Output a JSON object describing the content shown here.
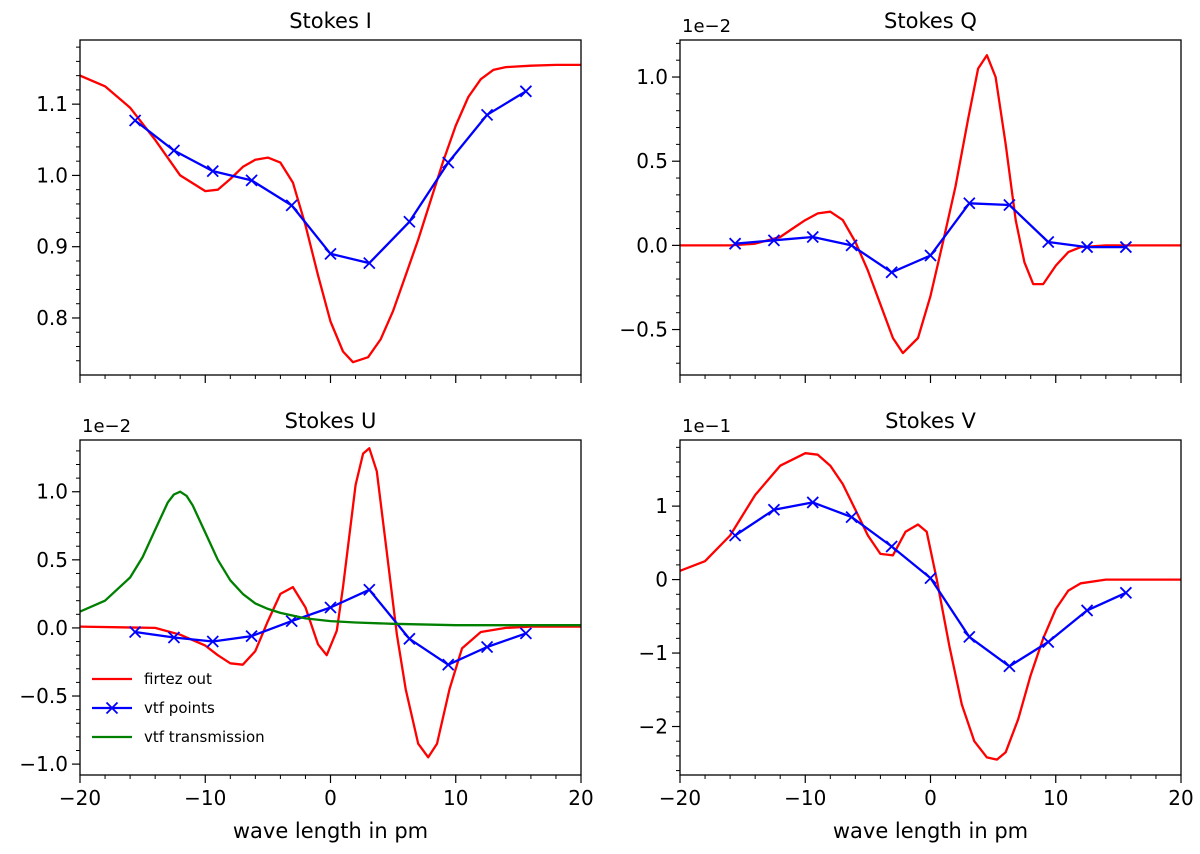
{
  "figure": {
    "xlabel": "wave length in pm",
    "legend": {
      "entries": [
        {
          "label": "firtez out",
          "color": "#ff0000",
          "marker": "none"
        },
        {
          "label": "vtf points",
          "color": "#0000ff",
          "marker": "x"
        },
        {
          "label": "vtf transmission",
          "color": "#008000",
          "marker": "none"
        }
      ],
      "placement": "lower-left",
      "panel": 2
    }
  },
  "chart_data": [
    {
      "type": "line",
      "title": "Stokes I",
      "offset_text": "",
      "xlabel": "",
      "xlim": [
        -20,
        20
      ],
      "ylim": [
        0.72,
        1.19
      ],
      "xticks": [],
      "yticks": [
        {
          "v": 0.8,
          "label": "0.8"
        },
        {
          "v": 0.9,
          "label": "0.9"
        },
        {
          "v": 1.0,
          "label": "1.0"
        },
        {
          "v": 1.1,
          "label": "1.1"
        }
      ],
      "series": [
        {
          "name": "firtez out",
          "color": "#ff0000",
          "marker": "none",
          "x": [
            -20,
            -18,
            -16,
            -14,
            -12,
            -10,
            -9,
            -8,
            -7,
            -6,
            -5,
            -4,
            -3,
            -2,
            -1,
            0,
            1,
            1.8,
            3,
            4,
            5,
            6,
            7,
            8,
            9,
            10,
            11,
            12,
            13,
            14,
            16,
            18,
            20
          ],
          "y": [
            1.14,
            1.125,
            1.095,
            1.05,
            1.0,
            0.978,
            0.98,
            0.995,
            1.012,
            1.022,
            1.025,
            1.018,
            0.99,
            0.93,
            0.86,
            0.795,
            0.753,
            0.738,
            0.745,
            0.77,
            0.81,
            0.86,
            0.91,
            0.965,
            1.02,
            1.07,
            1.11,
            1.135,
            1.148,
            1.152,
            1.154,
            1.155,
            1.155
          ]
        },
        {
          "name": "vtf points",
          "color": "#0000ff",
          "marker": "x",
          "x": [
            -15.6,
            -12.5,
            -9.4,
            -6.3,
            -3.1,
            0,
            3.1,
            6.3,
            9.4,
            12.5,
            15.6
          ],
          "y": [
            1.077,
            1.035,
            1.006,
            0.993,
            0.958,
            0.89,
            0.877,
            0.935,
            1.018,
            1.085,
            1.118
          ]
        }
      ]
    },
    {
      "type": "line",
      "title": "Stokes Q",
      "offset_text": "1e−2",
      "xlabel": "",
      "xlim": [
        -20,
        20
      ],
      "ylim": [
        -0.77,
        1.22
      ],
      "xticks": [],
      "yticks": [
        {
          "v": -0.5,
          "label": "−0.5"
        },
        {
          "v": 0.0,
          "label": "0.0"
        },
        {
          "v": 0.5,
          "label": "0.5"
        },
        {
          "v": 1.0,
          "label": "1.0"
        }
      ],
      "series": [
        {
          "name": "firtez out",
          "color": "#ff0000",
          "marker": "none",
          "x": [
            -20,
            -16,
            -14,
            -12,
            -11,
            -10,
            -9,
            -8,
            -7,
            -6,
            -5,
            -4,
            -3,
            -2.2,
            -1,
            0,
            1,
            2,
            3,
            3.8,
            4.5,
            5.2,
            6,
            6.8,
            7.5,
            8.2,
            9,
            10,
            11,
            12,
            14,
            16,
            20
          ],
          "y": [
            0,
            0,
            0.01,
            0.05,
            0.1,
            0.15,
            0.19,
            0.2,
            0.15,
            0.02,
            -0.15,
            -0.35,
            -0.55,
            -0.64,
            -0.55,
            -0.3,
            0.02,
            0.35,
            0.75,
            1.05,
            1.13,
            1.0,
            0.6,
            0.15,
            -0.1,
            -0.23,
            -0.23,
            -0.12,
            -0.04,
            -0.01,
            0,
            0,
            0
          ]
        },
        {
          "name": "vtf points",
          "color": "#0000ff",
          "marker": "x",
          "x": [
            -15.6,
            -12.5,
            -9.4,
            -6.3,
            -3.1,
            0,
            3.1,
            6.3,
            9.4,
            12.5,
            15.6
          ],
          "y": [
            0.01,
            0.03,
            0.05,
            0.0,
            -0.16,
            -0.06,
            0.25,
            0.24,
            0.02,
            -0.01,
            -0.01
          ]
        }
      ]
    },
    {
      "type": "line",
      "title": "Stokes U",
      "offset_text": "1e−2",
      "xlabel": "wave length in pm",
      "xlim": [
        -20,
        20
      ],
      "ylim": [
        -1.08,
        1.38
      ],
      "xticks": [
        {
          "v": -20,
          "label": "−20"
        },
        {
          "v": -10,
          "label": "−10"
        },
        {
          "v": 0,
          "label": "0"
        },
        {
          "v": 10,
          "label": "10"
        },
        {
          "v": 20,
          "label": "20"
        }
      ],
      "yticks": [
        {
          "v": -1.0,
          "label": "−1.0"
        },
        {
          "v": -0.5,
          "label": "−0.5"
        },
        {
          "v": 0.0,
          "label": "0.0"
        },
        {
          "v": 0.5,
          "label": "0.5"
        },
        {
          "v": 1.0,
          "label": "1.0"
        }
      ],
      "series": [
        {
          "name": "firtez out",
          "color": "#ff0000",
          "marker": "none",
          "x": [
            -20,
            -14,
            -12,
            -10,
            -9,
            -8,
            -7,
            -6,
            -5,
            -4,
            -3,
            -2,
            -1,
            -0.3,
            0.5,
            1,
            2,
            2.6,
            3.1,
            3.7,
            4.5,
            5.3,
            6,
            7,
            7.8,
            8.5,
            9.5,
            10.5,
            12,
            14,
            16,
            20
          ],
          "y": [
            0.01,
            0.0,
            -0.05,
            -0.13,
            -0.2,
            -0.26,
            -0.27,
            -0.17,
            0.05,
            0.25,
            0.3,
            0.15,
            -0.12,
            -0.2,
            -0.02,
            0.3,
            1.05,
            1.28,
            1.32,
            1.15,
            0.55,
            -0.05,
            -0.45,
            -0.85,
            -0.95,
            -0.85,
            -0.45,
            -0.15,
            -0.03,
            0,
            0.01,
            0.01
          ]
        },
        {
          "name": "vtf points",
          "color": "#0000ff",
          "marker": "x",
          "x": [
            -15.6,
            -12.5,
            -9.4,
            -6.3,
            -3.1,
            0,
            3.1,
            6.3,
            9.4,
            12.5,
            15.6
          ],
          "y": [
            -0.03,
            -0.07,
            -0.1,
            -0.06,
            0.05,
            0.15,
            0.28,
            -0.08,
            -0.27,
            -0.14,
            -0.04
          ]
        },
        {
          "name": "vtf transmission",
          "color": "#008000",
          "marker": "none",
          "x": [
            -20,
            -18,
            -16,
            -15,
            -14,
            -13,
            -12.5,
            -12,
            -11.5,
            -11,
            -10,
            -9,
            -8,
            -7,
            -6,
            -5,
            -4,
            -2,
            0,
            2,
            5,
            10,
            20
          ],
          "y": [
            0.12,
            0.2,
            0.37,
            0.52,
            0.72,
            0.92,
            0.98,
            1.0,
            0.97,
            0.9,
            0.7,
            0.5,
            0.35,
            0.25,
            0.18,
            0.14,
            0.11,
            0.07,
            0.05,
            0.04,
            0.03,
            0.02,
            0.02
          ]
        }
      ]
    },
    {
      "type": "line",
      "title": "Stokes V",
      "offset_text": "1e−1",
      "xlabel": "wave length in pm",
      "xlim": [
        -20,
        20
      ],
      "ylim": [
        -2.66,
        1.9
      ],
      "xticks": [
        {
          "v": -20,
          "label": "−20"
        },
        {
          "v": -10,
          "label": "−10"
        },
        {
          "v": 0,
          "label": "0"
        },
        {
          "v": 10,
          "label": "10"
        },
        {
          "v": 20,
          "label": "20"
        }
      ],
      "yticks": [
        {
          "v": -2,
          "label": "−2"
        },
        {
          "v": -1,
          "label": "−1"
        },
        {
          "v": 0,
          "label": "0"
        },
        {
          "v": 1,
          "label": "1"
        }
      ],
      "series": [
        {
          "name": "firtez out",
          "color": "#ff0000",
          "marker": "none",
          "x": [
            -20,
            -18,
            -16,
            -14,
            -12,
            -10,
            -9,
            -8,
            -7,
            -6,
            -5,
            -4,
            -3,
            -2,
            -1,
            -0.3,
            0.5,
            1.5,
            2.5,
            3.5,
            4.5,
            5.3,
            6,
            7,
            8,
            9,
            10,
            11,
            12,
            14,
            16,
            20
          ],
          "y": [
            0.12,
            0.25,
            0.6,
            1.15,
            1.55,
            1.72,
            1.7,
            1.55,
            1.3,
            0.95,
            0.6,
            0.35,
            0.33,
            0.65,
            0.75,
            0.65,
            0.0,
            -0.9,
            -1.7,
            -2.2,
            -2.42,
            -2.45,
            -2.35,
            -1.9,
            -1.3,
            -0.8,
            -0.4,
            -0.15,
            -0.05,
            0,
            0,
            0
          ]
        },
        {
          "name": "vtf points",
          "color": "#0000ff",
          "marker": "x",
          "x": [
            -15.6,
            -12.5,
            -9.4,
            -6.3,
            -3.1,
            0,
            3.1,
            6.3,
            9.4,
            12.5,
            15.6
          ],
          "y": [
            0.6,
            0.95,
            1.05,
            0.85,
            0.45,
            0.02,
            -0.78,
            -1.18,
            -0.85,
            -0.42,
            -0.18
          ]
        }
      ]
    }
  ]
}
